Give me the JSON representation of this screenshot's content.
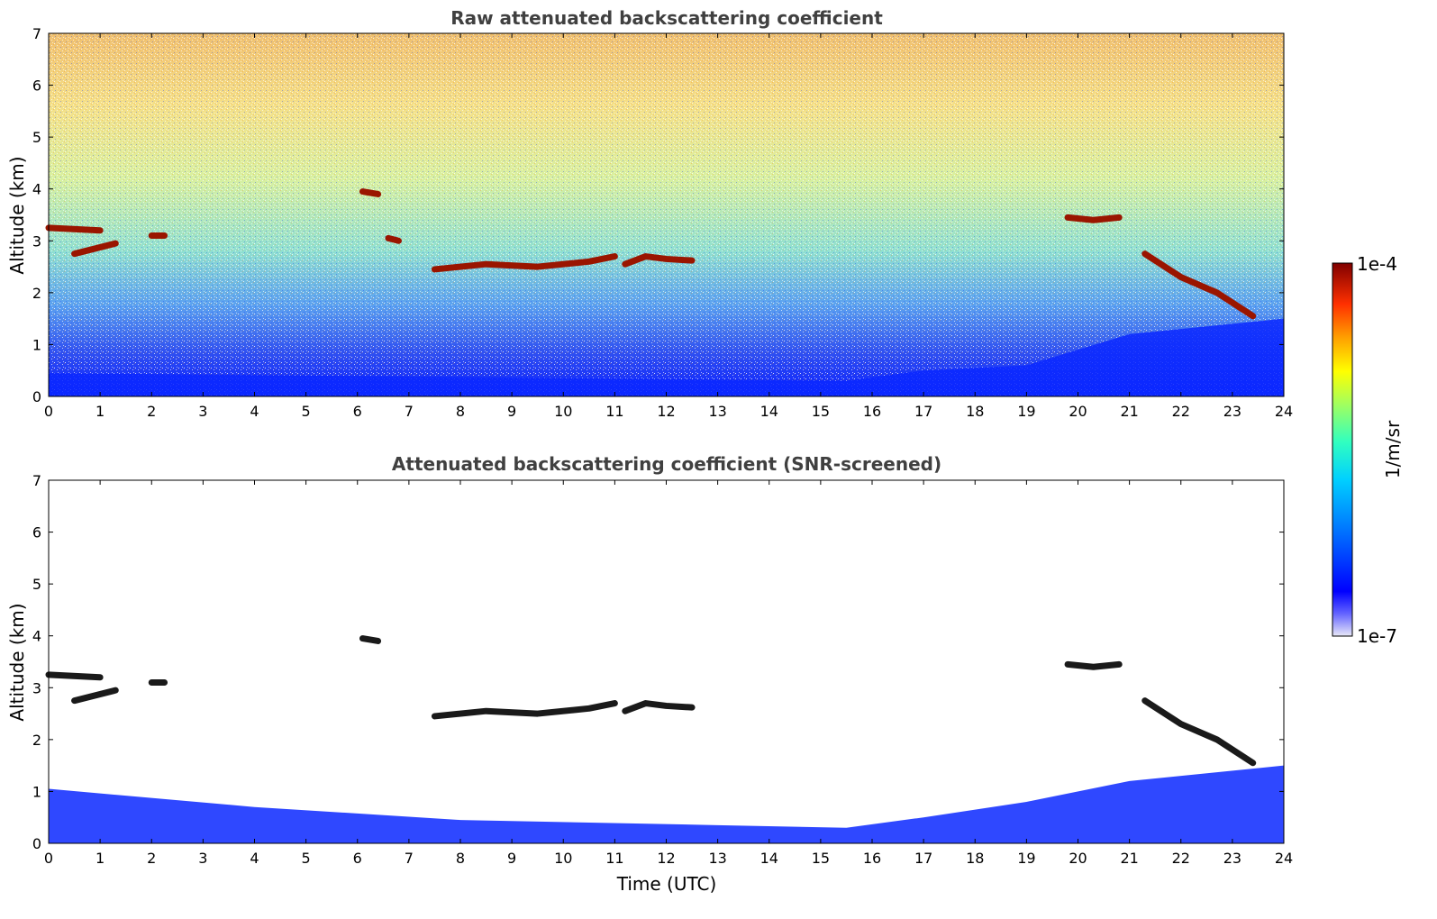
{
  "chart_data": [
    {
      "type": "heatmap",
      "title": "Raw attenuated backscattering coefficient",
      "xlabel": "",
      "ylabel": "Altitude (km)",
      "xlim": [
        0,
        24
      ],
      "ylim": [
        0,
        7
      ],
      "x_ticks": [
        "0",
        "1",
        "2",
        "3",
        "4",
        "5",
        "6",
        "7",
        "8",
        "9",
        "10",
        "11",
        "12",
        "13",
        "14",
        "15",
        "16",
        "17",
        "18",
        "19",
        "20",
        "21",
        "22",
        "23",
        "24"
      ],
      "y_ticks": [
        "0",
        "1",
        "2",
        "3",
        "4",
        "5",
        "6",
        "7"
      ],
      "color_scale": "log",
      "background_noise": true,
      "features": [
        {
          "kind": "cloud_layer",
          "x": [
            0.0,
            1.0
          ],
          "y": [
            3.25,
            3.2
          ],
          "level": "high"
        },
        {
          "kind": "cloud_layer",
          "x": [
            0.5,
            1.3
          ],
          "y": [
            2.75,
            2.95
          ],
          "level": "high"
        },
        {
          "kind": "cloud_layer",
          "x": [
            2.0,
            2.25
          ],
          "y": [
            3.1,
            3.1
          ],
          "level": "high"
        },
        {
          "kind": "cloud_layer",
          "x": [
            6.1,
            6.4
          ],
          "y": [
            3.95,
            3.9
          ],
          "level": "high"
        },
        {
          "kind": "cloud_layer",
          "x": [
            6.6,
            6.8
          ],
          "y": [
            3.05,
            3.0
          ],
          "level": "high"
        },
        {
          "kind": "cloud_layer",
          "x": [
            7.5,
            8.5,
            9.5,
            10.5,
            11.0
          ],
          "y": [
            2.45,
            2.55,
            2.5,
            2.6,
            2.7
          ],
          "level": "high"
        },
        {
          "kind": "cloud_layer",
          "x": [
            11.2,
            11.6,
            12.0,
            12.5
          ],
          "y": [
            2.55,
            2.7,
            2.65,
            2.62
          ],
          "level": "high"
        },
        {
          "kind": "cloud_layer",
          "x": [
            19.8,
            20.3,
            20.8
          ],
          "y": [
            3.45,
            3.4,
            3.45
          ],
          "level": "high"
        },
        {
          "kind": "cloud_layer",
          "x": [
            21.3,
            22.0,
            22.7,
            23.4
          ],
          "y": [
            2.75,
            2.3,
            2.0,
            1.55
          ],
          "level": "high"
        },
        {
          "kind": "surface_layer",
          "x": [
            0,
            15.5,
            17,
            19,
            21,
            24
          ],
          "y": [
            0.45,
            0.3,
            0.5,
            0.6,
            1.2,
            1.5
          ],
          "level": "low"
        }
      ]
    },
    {
      "type": "heatmap",
      "title": "Attenuated backscattering coefficient (SNR-screened)",
      "xlabel": "Time (UTC)",
      "ylabel": "Altitude (km)",
      "xlim": [
        0,
        24
      ],
      "ylim": [
        0,
        7
      ],
      "x_ticks": [
        "0",
        "1",
        "2",
        "3",
        "4",
        "5",
        "6",
        "7",
        "8",
        "9",
        "10",
        "11",
        "12",
        "13",
        "14",
        "15",
        "16",
        "17",
        "18",
        "19",
        "20",
        "21",
        "22",
        "23",
        "24"
      ],
      "y_ticks": [
        "0",
        "1",
        "2",
        "3",
        "4",
        "5",
        "6",
        "7"
      ],
      "color_scale": "log",
      "background_noise": false,
      "features": [
        {
          "kind": "cloud_layer",
          "x": [
            0.0,
            1.0
          ],
          "y": [
            3.25,
            3.2
          ],
          "level": "high"
        },
        {
          "kind": "cloud_layer",
          "x": [
            0.5,
            1.3
          ],
          "y": [
            2.75,
            2.95
          ],
          "level": "high"
        },
        {
          "kind": "cloud_layer",
          "x": [
            2.0,
            2.25
          ],
          "y": [
            3.1,
            3.1
          ],
          "level": "high"
        },
        {
          "kind": "cloud_layer",
          "x": [
            6.1,
            6.4
          ],
          "y": [
            3.95,
            3.9
          ],
          "level": "high"
        },
        {
          "kind": "cloud_layer",
          "x": [
            7.5,
            8.5,
            9.5,
            10.5,
            11.0
          ],
          "y": [
            2.45,
            2.55,
            2.5,
            2.6,
            2.7
          ],
          "level": "high"
        },
        {
          "kind": "cloud_layer",
          "x": [
            11.2,
            11.6,
            12.0,
            12.5
          ],
          "y": [
            2.55,
            2.7,
            2.65,
            2.62
          ],
          "level": "high"
        },
        {
          "kind": "cloud_layer",
          "x": [
            19.8,
            20.3,
            20.8
          ],
          "y": [
            3.45,
            3.4,
            3.45
          ],
          "level": "high"
        },
        {
          "kind": "cloud_layer",
          "x": [
            21.3,
            22.0,
            22.7,
            23.4
          ],
          "y": [
            2.75,
            2.3,
            2.0,
            1.55
          ],
          "level": "high"
        },
        {
          "kind": "surface_layer",
          "x": [
            0,
            4,
            8,
            13,
            15.5,
            17,
            19,
            21,
            24
          ],
          "y": [
            1.05,
            0.7,
            0.45,
            0.35,
            0.3,
            0.5,
            0.8,
            1.2,
            1.5
          ],
          "level": "low"
        }
      ]
    }
  ],
  "colorbar": {
    "label": "1/m/sr",
    "max_label": "1e-4",
    "min_label": "1e-7",
    "colors": [
      "#e8e8f8",
      "#6464ff",
      "#0000ff",
      "#0080ff",
      "#00d0ff",
      "#30ffc0",
      "#a0ff60",
      "#ffff00",
      "#ffa000",
      "#ff3000",
      "#a00000",
      "#800000"
    ]
  }
}
